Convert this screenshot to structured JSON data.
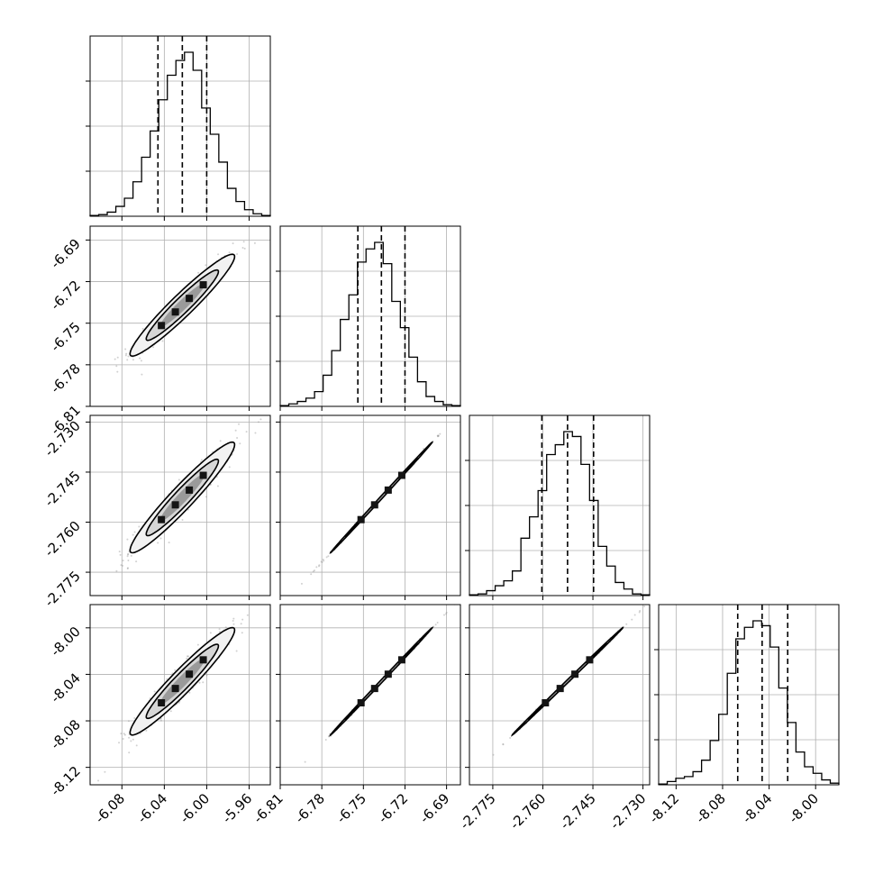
{
  "colors": {
    "axis": "#000000",
    "grid": "#b0b0b0",
    "points": "#9a9a9a",
    "level1": "#f2f2f2",
    "level2": "#d6d6d6",
    "level3": "#9a9a9a",
    "core": "#141414"
  },
  "chart_data": {
    "type": "corner",
    "grid": true,
    "parameters": [
      {
        "index": 0,
        "range": [
          -6.11,
          -5.94
        ],
        "ticks": [
          "-6.08",
          "-6.04",
          "-6.00",
          "-5.96"
        ],
        "quantiles": [
          -6.046,
          -6.023,
          -6.0
        ],
        "median": -6.023,
        "sigma": 0.0235,
        "hist": [
          0.005,
          0.01,
          0.025,
          0.06,
          0.11,
          0.21,
          0.36,
          0.52,
          0.71,
          0.86,
          0.95,
          1.0,
          0.89,
          0.66,
          0.5,
          0.33,
          0.17,
          0.09,
          0.04,
          0.015,
          0.005
        ]
      },
      {
        "index": 1,
        "range": [
          -6.81,
          -6.68
        ],
        "ticks": [
          "-6.69",
          "-6.72",
          "-6.75",
          "-6.78",
          "-6.81"
        ],
        "quantiles": [
          -6.754,
          -6.737,
          -6.72
        ],
        "median": -6.737,
        "sigma": 0.0175,
        "hist": [
          0.005,
          0.015,
          0.03,
          0.05,
          0.09,
          0.19,
          0.34,
          0.53,
          0.68,
          0.88,
          0.96,
          1.0,
          0.87,
          0.64,
          0.48,
          0.3,
          0.15,
          0.06,
          0.03,
          0.01,
          0.005
        ]
      },
      {
        "index": 2,
        "range": [
          -2.782,
          -2.728
        ],
        "ticks": [
          "-2.730",
          "-2.745",
          "-2.760",
          "-2.775"
        ],
        "quantiles": [
          -2.7603,
          -2.7526,
          -2.7448
        ],
        "median": -2.7526,
        "sigma": 0.0079,
        "hist": [
          0.005,
          0.01,
          0.03,
          0.06,
          0.09,
          0.15,
          0.35,
          0.48,
          0.64,
          0.86,
          0.92,
          1.0,
          0.97,
          0.8,
          0.58,
          0.3,
          0.18,
          0.08,
          0.04,
          0.01,
          0.005
        ]
      },
      {
        "index": 3,
        "range": [
          -8.135,
          -7.98
        ],
        "ticks": [
          "-8.12",
          "-8.08",
          "-8.04",
          "-8.00"
        ],
        "quantiles": [
          -8.067,
          -8.046,
          -8.024
        ],
        "median": -8.046,
        "sigma": 0.022,
        "hist": [
          0.005,
          0.02,
          0.04,
          0.05,
          0.08,
          0.15,
          0.27,
          0.43,
          0.68,
          0.89,
          0.96,
          1.0,
          0.97,
          0.84,
          0.59,
          0.38,
          0.2,
          0.11,
          0.07,
          0.03,
          0.01
        ]
      }
    ],
    "correlations": [
      {
        "row": 1,
        "col": 0,
        "rho": 0.955
      },
      {
        "row": 2,
        "col": 0,
        "rho": 0.955
      },
      {
        "row": 2,
        "col": 1,
        "rho": 0.9995
      },
      {
        "row": 3,
        "col": 0,
        "rho": 0.955
      },
      {
        "row": 3,
        "col": 1,
        "rho": 0.9995
      },
      {
        "row": 3,
        "col": 2,
        "rho": 0.9995
      }
    ]
  }
}
